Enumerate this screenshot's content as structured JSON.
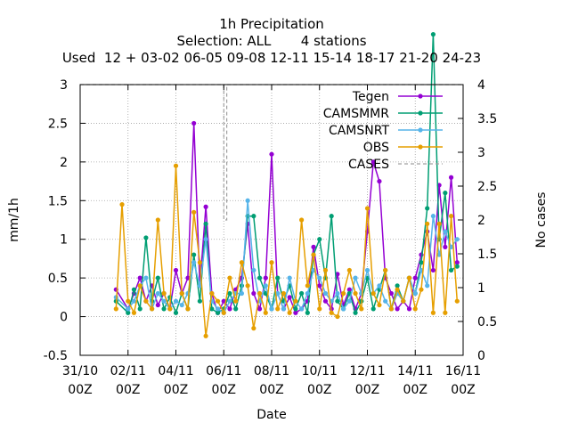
{
  "chart_data": {
    "type": "line",
    "title_lines": [
      "1h Precipitation",
      "Selection: ALL       4 stations",
      "Used  12 + 03-02 06-05 09-08 12-11 15-14 18-17 21-20 24-23"
    ],
    "xlabel": "Date",
    "ylabel_left": "mm/1h",
    "ylabel_right": "No cases",
    "x_ticks": [
      {
        "date": "2024-10-31T00:00",
        "line1": "31/10",
        "line2": "00Z"
      },
      {
        "date": "2024-11-02T00:00",
        "line1": "02/11",
        "line2": "00Z"
      },
      {
        "date": "2024-11-04T00:00",
        "line1": "04/11",
        "line2": "00Z"
      },
      {
        "date": "2024-11-06T00:00",
        "line1": "06/11",
        "line2": "00Z"
      },
      {
        "date": "2024-11-08T00:00",
        "line1": "08/11",
        "line2": "00Z"
      },
      {
        "date": "2024-11-10T00:00",
        "line1": "10/11",
        "line2": "00Z"
      },
      {
        "date": "2024-11-12T00:00",
        "line1": "12/11",
        "line2": "00Z"
      },
      {
        "date": "2024-11-14T00:00",
        "line1": "14/11",
        "line2": "00Z"
      },
      {
        "date": "2024-11-16T00:00",
        "line1": "16/11",
        "line2": "00Z"
      }
    ],
    "xlim": [
      "2024-10-31T00:00",
      "2024-11-16T00:00"
    ],
    "ylim_left": [
      -0.5,
      3
    ],
    "y_ticks_left": [
      "-0.5",
      "0",
      "0.5",
      "1",
      "1.5",
      "2",
      "2.5",
      "3"
    ],
    "ylim_right": [
      0,
      4
    ],
    "y_ticks_right": [
      "0",
      "0.5",
      "1",
      "1.5",
      "2",
      "2.5",
      "3",
      "3.5",
      "4"
    ],
    "grid": true,
    "legend_position": "top-right",
    "series": [
      {
        "name": "Tegen",
        "color": "#9400d3",
        "axis": "left",
        "x": [
          "2024-11-01T12:00",
          "2024-11-02T00:00",
          "2024-11-02T06:00",
          "2024-11-02T12:00",
          "2024-11-02T18:00",
          "2024-11-03T00:00",
          "2024-11-03T06:00",
          "2024-11-03T12:00",
          "2024-11-03T18:00",
          "2024-11-04T00:00",
          "2024-11-04T06:00",
          "2024-11-04T12:00",
          "2024-11-04T18:00",
          "2024-11-05T00:00",
          "2024-11-05T06:00",
          "2024-11-05T12:00",
          "2024-11-05T18:00",
          "2024-11-06T00:00",
          "2024-11-06T06:00",
          "2024-11-06T12:00",
          "2024-11-06T18:00",
          "2024-11-07T00:00",
          "2024-11-07T06:00",
          "2024-11-07T12:00",
          "2024-11-07T18:00",
          "2024-11-08T00:00",
          "2024-11-08T06:00",
          "2024-11-08T12:00",
          "2024-11-08T18:00",
          "2024-11-09T00:00",
          "2024-11-09T06:00",
          "2024-11-09T12:00",
          "2024-11-09T18:00",
          "2024-11-10T00:00",
          "2024-11-10T06:00",
          "2024-11-10T12:00",
          "2024-11-10T18:00",
          "2024-11-11T00:00",
          "2024-11-11T06:00",
          "2024-11-11T12:00",
          "2024-11-11T18:00",
          "2024-11-12T00:00",
          "2024-11-12T06:00",
          "2024-11-12T12:00",
          "2024-11-12T18:00",
          "2024-11-13T00:00",
          "2024-11-13T06:00",
          "2024-11-13T12:00",
          "2024-11-13T18:00",
          "2024-11-14T00:00",
          "2024-11-14T06:00",
          "2024-11-14T12:00",
          "2024-11-14T18:00",
          "2024-11-15T00:00",
          "2024-11-15T06:00",
          "2024-11-15T12:00",
          "2024-11-15T18:00"
        ],
        "y": [
          0.35,
          0.1,
          0.3,
          0.5,
          0.2,
          0.4,
          0.15,
          0.3,
          0.1,
          0.6,
          0.3,
          0.5,
          2.5,
          0.4,
          1.42,
          0.3,
          0.05,
          0.2,
          0.1,
          0.35,
          0.5,
          1.2,
          0.3,
          0.1,
          0.5,
          2.1,
          0.3,
          0.1,
          0.25,
          0.05,
          0.1,
          0.2,
          0.9,
          0.4,
          0.2,
          0.1,
          0.55,
          0.15,
          0.35,
          0.1,
          0.3,
          1.1,
          2.0,
          1.75,
          0.5,
          0.3,
          0.1,
          0.2,
          0.1,
          0.5,
          0.8,
          1.1,
          0.6,
          1.7,
          0.9,
          1.8,
          0.7
        ]
      },
      {
        "name": "CAMSMMR",
        "color": "#009e73",
        "axis": "left",
        "x": [
          "2024-11-01T12:00",
          "2024-11-02T00:00",
          "2024-11-02T06:00",
          "2024-11-02T12:00",
          "2024-11-02T18:00",
          "2024-11-03T00:00",
          "2024-11-03T06:00",
          "2024-11-03T12:00",
          "2024-11-03T18:00",
          "2024-11-04T00:00",
          "2024-11-04T06:00",
          "2024-11-04T12:00",
          "2024-11-04T18:00",
          "2024-11-05T00:00",
          "2024-11-05T06:00",
          "2024-11-05T12:00",
          "2024-11-05T18:00",
          "2024-11-06T00:00",
          "2024-11-06T06:00",
          "2024-11-06T12:00",
          "2024-11-06T18:00",
          "2024-11-07T00:00",
          "2024-11-07T06:00",
          "2024-11-07T12:00",
          "2024-11-07T18:00",
          "2024-11-08T00:00",
          "2024-11-08T06:00",
          "2024-11-08T12:00",
          "2024-11-08T18:00",
          "2024-11-09T00:00",
          "2024-11-09T06:00",
          "2024-11-09T12:00",
          "2024-11-09T18:00",
          "2024-11-10T00:00",
          "2024-11-10T06:00",
          "2024-11-10T12:00",
          "2024-11-10T18:00",
          "2024-11-11T00:00",
          "2024-11-11T06:00",
          "2024-11-11T12:00",
          "2024-11-11T18:00",
          "2024-11-12T00:00",
          "2024-11-12T06:00",
          "2024-11-12T12:00",
          "2024-11-12T18:00",
          "2024-11-13T00:00",
          "2024-11-13T06:00",
          "2024-11-13T12:00",
          "2024-11-13T18:00",
          "2024-11-14T00:00",
          "2024-11-14T06:00",
          "2024-11-14T12:00",
          "2024-11-14T18:00",
          "2024-11-15T00:00",
          "2024-11-15T06:00",
          "2024-11-15T12:00",
          "2024-11-15T18:00"
        ],
        "y": [
          0.2,
          0.05,
          0.35,
          0.1,
          1.02,
          0.2,
          0.5,
          0.1,
          0.25,
          0.05,
          0.3,
          0.1,
          0.8,
          0.2,
          1.2,
          0.1,
          0.05,
          0.1,
          0.3,
          0.1,
          0.4,
          1.3,
          1.3,
          0.5,
          0.3,
          0.1,
          0.5,
          0.2,
          0.4,
          0.1,
          0.3,
          0.05,
          0.8,
          1.0,
          0.5,
          1.3,
          0.2,
          0.1,
          0.3,
          0.05,
          0.2,
          0.5,
          0.1,
          0.35,
          0.6,
          0.1,
          0.4,
          0.2,
          0.5,
          0.3,
          0.7,
          1.4,
          3.65,
          1.0,
          1.6,
          0.6,
          0.65
        ]
      },
      {
        "name": "CAMSNRT",
        "color": "#56b4e9",
        "axis": "left",
        "x": [
          "2024-11-01T12:00",
          "2024-11-02T00:00",
          "2024-11-02T06:00",
          "2024-11-02T12:00",
          "2024-11-02T18:00",
          "2024-11-03T00:00",
          "2024-11-03T06:00",
          "2024-11-03T12:00",
          "2024-11-03T18:00",
          "2024-11-04T00:00",
          "2024-11-04T06:00",
          "2024-11-04T12:00",
          "2024-11-04T18:00",
          "2024-11-05T00:00",
          "2024-11-05T06:00",
          "2024-11-05T12:00",
          "2024-11-05T18:00",
          "2024-11-06T00:00",
          "2024-11-06T06:00",
          "2024-11-06T12:00",
          "2024-11-06T18:00",
          "2024-11-07T00:00",
          "2024-11-07T06:00",
          "2024-11-07T12:00",
          "2024-11-07T18:00",
          "2024-11-08T00:00",
          "2024-11-08T06:00",
          "2024-11-08T12:00",
          "2024-11-08T18:00",
          "2024-11-09T00:00",
          "2024-11-09T06:00",
          "2024-11-09T12:00",
          "2024-11-09T18:00",
          "2024-11-10T00:00",
          "2024-11-10T06:00",
          "2024-11-10T12:00",
          "2024-11-10T18:00",
          "2024-11-11T00:00",
          "2024-11-11T06:00",
          "2024-11-11T12:00",
          "2024-11-11T18:00",
          "2024-11-12T00:00",
          "2024-11-12T06:00",
          "2024-11-12T12:00",
          "2024-11-12T18:00",
          "2024-11-13T00:00",
          "2024-11-13T06:00",
          "2024-11-13T12:00",
          "2024-11-13T18:00",
          "2024-11-14T00:00",
          "2024-11-14T06:00",
          "2024-11-14T12:00",
          "2024-11-14T18:00",
          "2024-11-15T00:00",
          "2024-11-15T06:00",
          "2024-11-15T12:00",
          "2024-11-15T18:00"
        ],
        "y": [
          0.25,
          0.1,
          0.2,
          0.4,
          0.5,
          0.1,
          0.3,
          0.2,
          0.1,
          0.2,
          0.15,
          0.3,
          0.7,
          0.4,
          1.0,
          0.2,
          0.1,
          0.05,
          0.2,
          0.3,
          0.3,
          1.5,
          0.6,
          0.2,
          0.4,
          0.1,
          0.3,
          0.1,
          0.5,
          0.2,
          0.1,
          0.3,
          0.6,
          0.5,
          0.3,
          0.2,
          0.3,
          0.1,
          0.2,
          0.5,
          0.3,
          0.6,
          0.3,
          0.4,
          0.2,
          0.1,
          0.3,
          0.2,
          0.5,
          0.3,
          0.6,
          0.4,
          1.3,
          0.8,
          1.1,
          0.9,
          1.0
        ]
      },
      {
        "name": "OBS",
        "color": "#e69f00",
        "axis": "left",
        "x": [
          "2024-11-01T12:00",
          "2024-11-01T18:00",
          "2024-11-02T00:00",
          "2024-11-02T06:00",
          "2024-11-02T12:00",
          "2024-11-02T18:00",
          "2024-11-03T00:00",
          "2024-11-03T06:00",
          "2024-11-03T12:00",
          "2024-11-03T18:00",
          "2024-11-04T00:00",
          "2024-11-04T06:00",
          "2024-11-04T12:00",
          "2024-11-04T18:00",
          "2024-11-05T00:00",
          "2024-11-05T06:00",
          "2024-11-05T12:00",
          "2024-11-05T18:00",
          "2024-11-06T00:00",
          "2024-11-06T06:00",
          "2024-11-06T12:00",
          "2024-11-06T18:00",
          "2024-11-07T00:00",
          "2024-11-07T06:00",
          "2024-11-07T12:00",
          "2024-11-07T18:00",
          "2024-11-08T00:00",
          "2024-11-08T06:00",
          "2024-11-08T12:00",
          "2024-11-08T18:00",
          "2024-11-09T00:00",
          "2024-11-09T06:00",
          "2024-11-09T12:00",
          "2024-11-09T18:00",
          "2024-11-10T00:00",
          "2024-11-10T06:00",
          "2024-11-10T12:00",
          "2024-11-10T18:00",
          "2024-11-11T00:00",
          "2024-11-11T06:00",
          "2024-11-11T12:00",
          "2024-11-11T18:00",
          "2024-11-12T00:00",
          "2024-11-12T06:00",
          "2024-11-12T12:00",
          "2024-11-12T18:00",
          "2024-11-13T00:00",
          "2024-11-13T06:00",
          "2024-11-13T12:00",
          "2024-11-13T18:00",
          "2024-11-14T00:00",
          "2024-11-14T06:00",
          "2024-11-14T12:00",
          "2024-11-14T18:00",
          "2024-11-15T00:00",
          "2024-11-15T06:00",
          "2024-11-15T12:00",
          "2024-11-15T18:00"
        ],
        "y": [
          0.1,
          1.45,
          0.2,
          0.05,
          0.4,
          0.2,
          0.1,
          1.25,
          0.3,
          0.1,
          1.95,
          0.3,
          0.1,
          1.35,
          0.7,
          -0.25,
          0.3,
          0.2,
          0.05,
          0.5,
          0.2,
          0.7,
          0.4,
          -0.15,
          0.3,
          0.05,
          0.7,
          0.1,
          0.3,
          0.05,
          0.2,
          1.25,
          0.4,
          0.8,
          0.1,
          0.6,
          0.05,
          0.0,
          0.3,
          0.6,
          0.3,
          0.1,
          1.4,
          0.3,
          0.15,
          0.6,
          0.1,
          0.35,
          0.2,
          0.5,
          0.1,
          0.35,
          1.2,
          0.05,
          1.2,
          0.05,
          1.3,
          0.2
        ]
      },
      {
        "name": "CASES",
        "color": "#a0a0a0",
        "axis": "right",
        "dashed": true,
        "x": [
          "2024-10-31T00:00",
          "2024-11-06T00:00",
          "2024-11-06T00:00",
          "2024-11-06T03:00",
          "2024-11-06T03:00",
          "2024-11-06T05:00",
          "2024-11-06T05:00",
          "2024-11-16T00:00"
        ],
        "y": [
          4.0,
          4.0,
          2.0,
          2.0,
          4.0,
          4.0,
          4.0,
          4.0
        ]
      }
    ]
  }
}
